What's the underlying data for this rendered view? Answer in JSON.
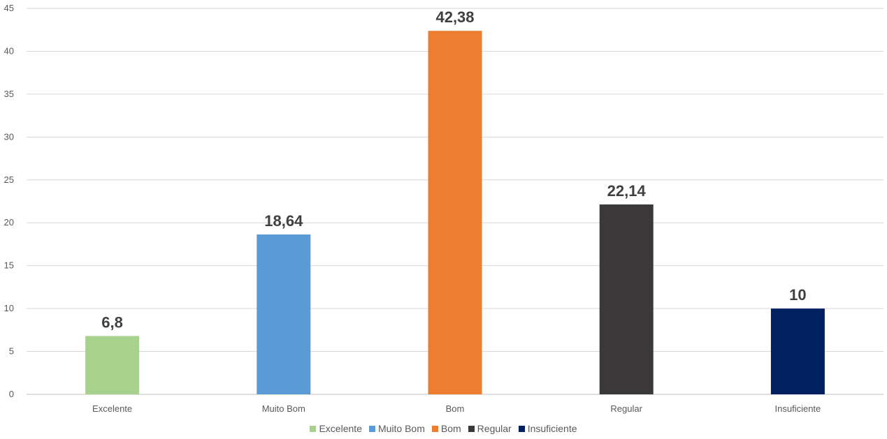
{
  "chart_data": {
    "type": "bar",
    "title": "",
    "xlabel": "",
    "ylabel": "",
    "categories": [
      "Excelente",
      "Muito Bom",
      "Bom",
      "Regular",
      "Insuficiente"
    ],
    "values": [
      6.8,
      18.64,
      42.38,
      22.14,
      10
    ],
    "data_labels": [
      "6,8",
      "18,64",
      "42,38",
      "22,14",
      "10"
    ],
    "colors": [
      "#a9d18e",
      "#5b9bd5",
      "#ed7d31",
      "#3a3838",
      "#002060"
    ],
    "ylim": [
      0,
      45
    ],
    "yticks": [
      0,
      5,
      10,
      15,
      20,
      25,
      30,
      35,
      40,
      45
    ],
    "grid": true,
    "legend_position": "bottom"
  }
}
